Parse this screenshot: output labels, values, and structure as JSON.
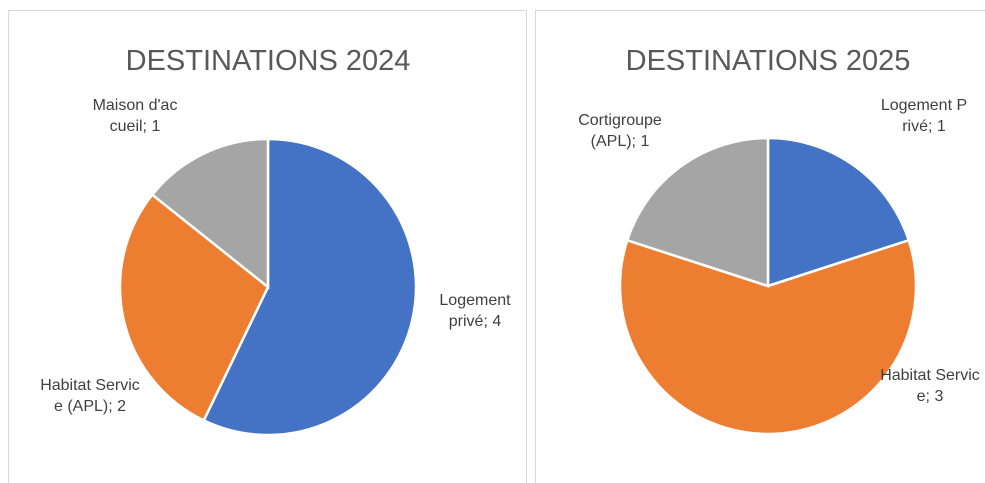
{
  "chart_data": [
    {
      "type": "pie",
      "title": "DESTINATIONS 2024",
      "categories": [
        "Logement privé",
        "Habitat Service (APL)",
        "Maison d'accueil"
      ],
      "values": [
        4,
        2,
        1
      ],
      "colors": [
        "#4472c4",
        "#ed7d31",
        "#a5a5a5"
      ],
      "label_separator": "; "
    },
    {
      "type": "pie",
      "title": "DESTINATIONS 2025",
      "categories": [
        "Logement Privé",
        "Habitat Service",
        "Cortigroupe (APL)"
      ],
      "values": [
        1,
        3,
        1
      ],
      "colors": [
        "#4472c4",
        "#ed7d31",
        "#a5a5a5"
      ],
      "label_separator": "; "
    }
  ]
}
